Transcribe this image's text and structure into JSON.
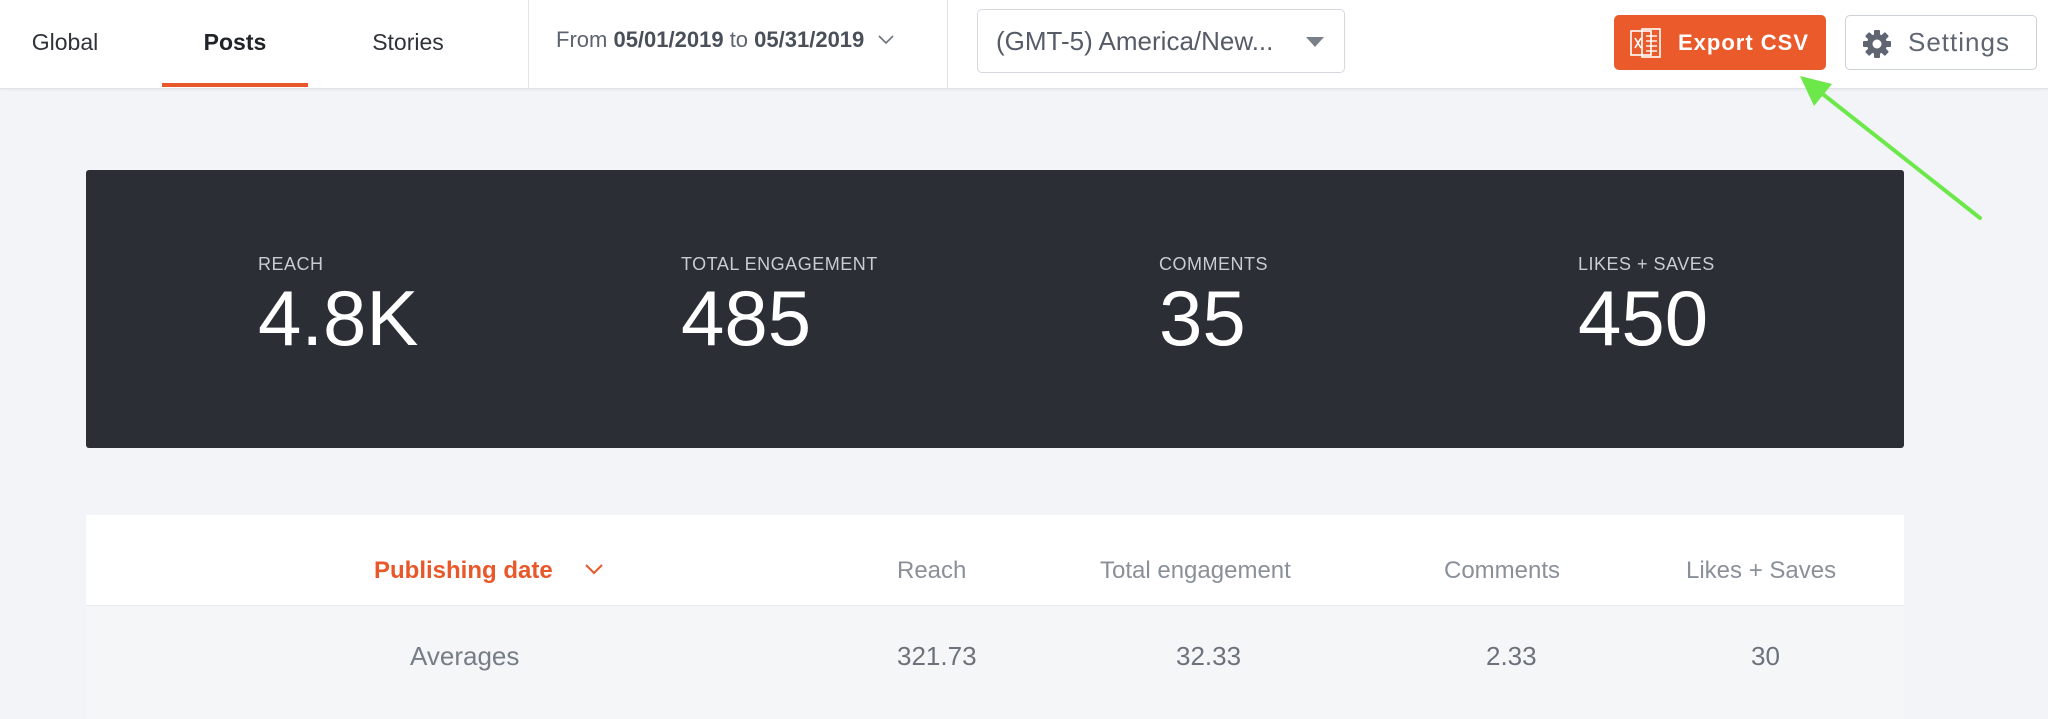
{
  "tabs": [
    {
      "label": "Global",
      "active": false
    },
    {
      "label": "Posts",
      "active": true
    },
    {
      "label": "Stories",
      "active": false
    }
  ],
  "date_range": {
    "prefix": "From",
    "start": "05/01/2019",
    "connector": "to",
    "end": "05/31/2019"
  },
  "timezone": {
    "selected": "(GMT-5) America/New..."
  },
  "export_button": {
    "label": "Export CSV"
  },
  "settings_button": {
    "label": "Settings"
  },
  "stats": [
    {
      "label": "REACH",
      "value": "4.8K"
    },
    {
      "label": "TOTAL ENGAGEMENT",
      "value": "485"
    },
    {
      "label": "COMMENTS",
      "value": "35"
    },
    {
      "label": "LIKES + SAVES",
      "value": "450"
    }
  ],
  "table": {
    "headers": [
      "Publishing date",
      "Reach",
      "Total engagement",
      "Comments",
      "Likes + Saves"
    ],
    "rows": [
      [
        "Averages",
        "321.73",
        "32.33",
        "2.33",
        "30"
      ]
    ]
  },
  "colors": {
    "accent": "#ea5a2b",
    "stats_bg": "#2b2e35",
    "page_bg": "#f2f4f7",
    "annotation_arrow": "#6ce84a"
  },
  "icons": {
    "export": "excel-file-icon",
    "settings": "gear-icon",
    "date_range": "chevron-down-icon",
    "timezone": "caret-down-icon",
    "sort": "chevron-down-icon"
  }
}
